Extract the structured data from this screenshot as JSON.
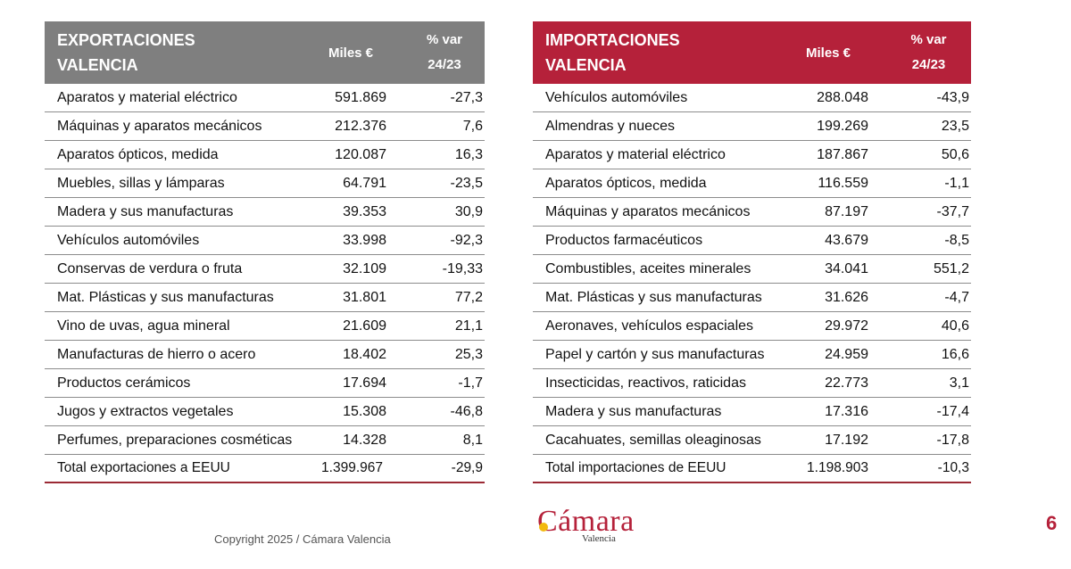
{
  "exports": {
    "title_line1": "EXPORTACIONES",
    "title_line2": "VALENCIA",
    "col_miles": "Miles €",
    "col_var_line1": "% var",
    "col_var_line2": "24/23",
    "rows": [
      {
        "name": "Aparatos y material eléctrico",
        "miles": "591.869",
        "var": "-27,3"
      },
      {
        "name": "Máquinas y aparatos mecánicos",
        "miles": "212.376",
        "var": "7,6"
      },
      {
        "name": "Aparatos ópticos, medida",
        "miles": "120.087",
        "var": "16,3"
      },
      {
        "name": "Muebles, sillas y lámparas",
        "miles": "64.791",
        "var": "-23,5"
      },
      {
        "name": "Madera y sus manufacturas",
        "miles": "39.353",
        "var": "30,9"
      },
      {
        "name": "Vehículos automóviles",
        "miles": "33.998",
        "var": "-92,3"
      },
      {
        "name": "Conservas de verdura o fruta",
        "miles": "32.109",
        "var": "-19,33"
      },
      {
        "name": "Mat. Plásticas y sus manufacturas",
        "miles": "31.801",
        "var": "77,2"
      },
      {
        "name": "Vino de uvas, agua mineral",
        "miles": "21.609",
        "var": "21,1"
      },
      {
        "name": "Manufacturas de hierro o acero",
        "miles": "18.402",
        "var": "25,3"
      },
      {
        "name": "Productos cerámicos",
        "miles": "17.694",
        "var": "-1,7"
      },
      {
        "name": "Jugos y extractos vegetales",
        "miles": "15.308",
        "var": "-46,8"
      },
      {
        "name": "Perfumes, preparaciones cosméticas",
        "miles": "14.328",
        "var": "8,1"
      }
    ],
    "total": {
      "name": "Total exportaciones a EEUU",
      "miles": "1.399.967",
      "var": "-29,9"
    }
  },
  "imports": {
    "title_line1": "IMPORTACIONES",
    "title_line2": "VALENCIA",
    "col_miles": "Miles €",
    "col_var_line1": "% var",
    "col_var_line2": "24/23",
    "rows": [
      {
        "name": "Vehículos automóviles",
        "miles": "288.048",
        "var": "-43,9"
      },
      {
        "name": "Almendras y nueces",
        "miles": "199.269",
        "var": "23,5"
      },
      {
        "name": "Aparatos y material eléctrico",
        "miles": "187.867",
        "var": "50,6"
      },
      {
        "name": "Aparatos ópticos, medida",
        "miles": "116.559",
        "var": "-1,1"
      },
      {
        "name": "Máquinas y aparatos mecánicos",
        "miles": "87.197",
        "var": "-37,7"
      },
      {
        "name": "Productos farmacéuticos",
        "miles": "43.679",
        "var": "-8,5"
      },
      {
        "name": "Combustibles, aceites minerales",
        "miles": "34.041",
        "var": "551,2"
      },
      {
        "name": "Mat. Plásticas y sus manufacturas",
        "miles": "31.626",
        "var": "-4,7"
      },
      {
        "name": "Aeronaves, vehículos espaciales",
        "miles": "29.972",
        "var": "40,6"
      },
      {
        "name": "Papel y cartón y sus manufacturas",
        "miles": "24.959",
        "var": "16,6"
      },
      {
        "name": "Insecticidas, reactivos, raticidas",
        "miles": "22.773",
        "var": "3,1"
      },
      {
        "name": "Madera y sus manufacturas",
        "miles": "17.316",
        "var": "-17,4"
      },
      {
        "name": "Cacahuates, semillas oleaginosas",
        "miles": "17.192",
        "var": "-17,8"
      }
    ],
    "total": {
      "name": "Total importaciones de EEUU",
      "miles": "1.198.903",
      "var": "-10,3"
    }
  },
  "footer": {
    "copyright": "Copyright 2025 / Cámara Valencia",
    "logo_word": "Cámara",
    "logo_sub": "Valencia",
    "page_number": "6"
  },
  "colors": {
    "export_header": "#7f7f7f",
    "import_header": "#b5213a",
    "accent": "#b5213a"
  }
}
